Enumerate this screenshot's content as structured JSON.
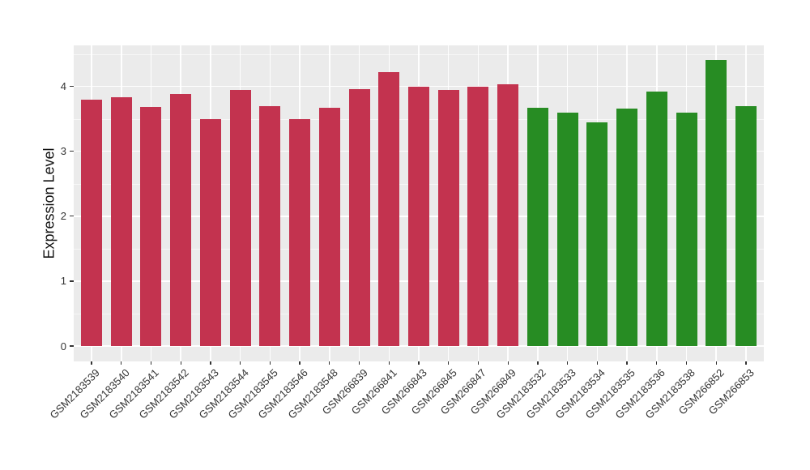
{
  "chart_data": {
    "type": "bar",
    "title": "",
    "xlabel": "",
    "ylabel": "Expression Level",
    "ylim": [
      0,
      4.63
    ],
    "yticks": [
      0,
      1,
      2,
      3,
      4
    ],
    "grid": "major and minor horizontal white gridlines, vertical white gridline at each category, gray panel",
    "legend": "none",
    "panel_bg": "#EBEBEB",
    "grid_color": "#FFFFFF",
    "tick_color": "#333333",
    "categories": [
      "GSM2183539",
      "GSM2183540",
      "GSM2183541",
      "GSM2183542",
      "GSM2183543",
      "GSM2183544",
      "GSM2183545",
      "GSM2183546",
      "GSM2183548",
      "GSM266839",
      "GSM266841",
      "GSM266843",
      "GSM266845",
      "GSM266847",
      "GSM266849",
      "GSM2183532",
      "GSM2183533",
      "GSM2183534",
      "GSM2183535",
      "GSM2183536",
      "GSM2183538",
      "GSM266852",
      "GSM266853"
    ],
    "values": [
      3.8,
      3.83,
      3.68,
      3.88,
      3.49,
      3.94,
      3.7,
      3.49,
      3.67,
      3.96,
      4.22,
      4.0,
      3.95,
      4.0,
      4.03,
      3.67,
      3.6,
      3.45,
      3.66,
      3.92,
      3.6,
      4.41,
      3.69
    ],
    "groups": [
      "group1",
      "group1",
      "group1",
      "group1",
      "group1",
      "group1",
      "group1",
      "group1",
      "group1",
      "group1",
      "group1",
      "group1",
      "group1",
      "group1",
      "group1",
      "group2",
      "group2",
      "group2",
      "group2",
      "group2",
      "group2",
      "group2",
      "group2"
    ],
    "group_colors": {
      "group1": "#C3334F",
      "group2": "#278C23"
    }
  }
}
